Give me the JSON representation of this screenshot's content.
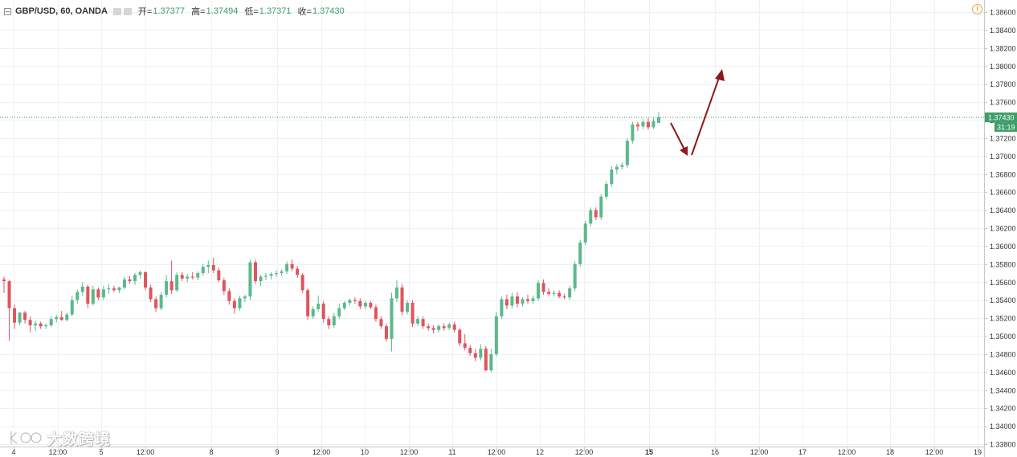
{
  "legend": {
    "symbol": "GBP/USD, 60, OANDA",
    "open_label": "开=",
    "open_value": "1.37377",
    "high_label": "高=",
    "high_value": "1.37494",
    "low_label": "低=",
    "low_value": "1.37371",
    "close_label": "收=",
    "close_value": "1.37430"
  },
  "alert_icon": "!",
  "watermark": {
    "text": "大数跨境"
  },
  "colors": {
    "up": "#5bb98b",
    "down": "#e0545e",
    "grid": "#eef1f4",
    "price_line": "#3c9e68",
    "arrow": "#8b1a1a",
    "axis_text": "#333333"
  },
  "chart_data": {
    "type": "candlestick",
    "title": "GBP/USD, 60, OANDA",
    "x_tick_labels": [
      "4",
      "12:00",
      "5",
      "12:00",
      "8",
      "9",
      "12:00",
      "10",
      "12:00",
      "11",
      "12:00",
      "12",
      "12:00",
      "15",
      "16",
      "12:00",
      "17",
      "12:00",
      "18",
      "12:00",
      "19"
    ],
    "y_ticks": [
      "1.38600",
      "1.38400",
      "1.38200",
      "1.38000",
      "1.37800",
      "1.37600",
      "1.37400",
      "1.37200",
      "1.37000",
      "1.36800",
      "1.36600",
      "1.36400",
      "1.36200",
      "1.36000",
      "1.35800",
      "1.35600",
      "1.35400",
      "1.35200",
      "1.35000",
      "1.34800",
      "1.34600",
      "1.34400",
      "1.34200",
      "1.34000",
      "1.33800"
    ],
    "ylim": [
      1.3379,
      1.3868
    ],
    "last_price": "1.37430",
    "countdown": "31:19",
    "series": [
      {
        "o": 1.3563,
        "h": 1.3566,
        "l": 1.3548,
        "c": 1.3561
      },
      {
        "o": 1.3561,
        "h": 1.3562,
        "l": 1.3495,
        "c": 1.3531
      },
      {
        "o": 1.3531,
        "h": 1.3535,
        "l": 1.3508,
        "c": 1.3515
      },
      {
        "o": 1.3515,
        "h": 1.3527,
        "l": 1.3512,
        "c": 1.3526
      },
      {
        "o": 1.3526,
        "h": 1.3528,
        "l": 1.3514,
        "c": 1.3518
      },
      {
        "o": 1.3518,
        "h": 1.3522,
        "l": 1.3504,
        "c": 1.3512
      },
      {
        "o": 1.3512,
        "h": 1.3517,
        "l": 1.3506,
        "c": 1.3514
      },
      {
        "o": 1.3514,
        "h": 1.3516,
        "l": 1.3508,
        "c": 1.3511
      },
      {
        "o": 1.3511,
        "h": 1.3514,
        "l": 1.3508,
        "c": 1.3512
      },
      {
        "o": 1.3512,
        "h": 1.3522,
        "l": 1.351,
        "c": 1.3519
      },
      {
        "o": 1.3519,
        "h": 1.3524,
        "l": 1.3515,
        "c": 1.3521
      },
      {
        "o": 1.3521,
        "h": 1.3528,
        "l": 1.3517,
        "c": 1.3518
      },
      {
        "o": 1.3518,
        "h": 1.3526,
        "l": 1.3516,
        "c": 1.3524
      },
      {
        "o": 1.3524,
        "h": 1.3545,
        "l": 1.3522,
        "c": 1.354
      },
      {
        "o": 1.354,
        "h": 1.3552,
        "l": 1.3536,
        "c": 1.3549
      },
      {
        "o": 1.3549,
        "h": 1.356,
        "l": 1.3545,
        "c": 1.3555
      },
      {
        "o": 1.3555,
        "h": 1.3557,
        "l": 1.3531,
        "c": 1.3536
      },
      {
        "o": 1.3536,
        "h": 1.3556,
        "l": 1.3534,
        "c": 1.3552
      },
      {
        "o": 1.3552,
        "h": 1.3554,
        "l": 1.354,
        "c": 1.3543
      },
      {
        "o": 1.3543,
        "h": 1.3556,
        "l": 1.354,
        "c": 1.3552
      },
      {
        "o": 1.3552,
        "h": 1.3558,
        "l": 1.3547,
        "c": 1.3553
      },
      {
        "o": 1.3553,
        "h": 1.3556,
        "l": 1.3549,
        "c": 1.3551
      },
      {
        "o": 1.3551,
        "h": 1.3555,
        "l": 1.3548,
        "c": 1.3554
      },
      {
        "o": 1.3554,
        "h": 1.3566,
        "l": 1.3552,
        "c": 1.3563
      },
      {
        "o": 1.3563,
        "h": 1.3567,
        "l": 1.3558,
        "c": 1.3561
      },
      {
        "o": 1.3561,
        "h": 1.357,
        "l": 1.3557,
        "c": 1.3568
      },
      {
        "o": 1.3568,
        "h": 1.3573,
        "l": 1.3564,
        "c": 1.3571
      },
      {
        "o": 1.3571,
        "h": 1.3572,
        "l": 1.3551,
        "c": 1.3554
      },
      {
        "o": 1.3554,
        "h": 1.3557,
        "l": 1.3538,
        "c": 1.3541
      },
      {
        "o": 1.3541,
        "h": 1.3544,
        "l": 1.3527,
        "c": 1.3531
      },
      {
        "o": 1.3531,
        "h": 1.3549,
        "l": 1.3529,
        "c": 1.3546
      },
      {
        "o": 1.3546,
        "h": 1.3568,
        "l": 1.3543,
        "c": 1.3561
      },
      {
        "o": 1.3561,
        "h": 1.3584,
        "l": 1.3547,
        "c": 1.3551
      },
      {
        "o": 1.3551,
        "h": 1.3571,
        "l": 1.3549,
        "c": 1.3568
      },
      {
        "o": 1.3568,
        "h": 1.3571,
        "l": 1.3561,
        "c": 1.3564
      },
      {
        "o": 1.3564,
        "h": 1.3569,
        "l": 1.356,
        "c": 1.3566
      },
      {
        "o": 1.3566,
        "h": 1.3571,
        "l": 1.3563,
        "c": 1.3565
      },
      {
        "o": 1.3565,
        "h": 1.3572,
        "l": 1.3562,
        "c": 1.357
      },
      {
        "o": 1.357,
        "h": 1.358,
        "l": 1.3567,
        "c": 1.3577
      },
      {
        "o": 1.3577,
        "h": 1.3584,
        "l": 1.357,
        "c": 1.3579
      },
      {
        "o": 1.3579,
        "h": 1.3587,
        "l": 1.357,
        "c": 1.3573
      },
      {
        "o": 1.3573,
        "h": 1.3576,
        "l": 1.356,
        "c": 1.3562
      },
      {
        "o": 1.3562,
        "h": 1.3565,
        "l": 1.3546,
        "c": 1.355
      },
      {
        "o": 1.355,
        "h": 1.3553,
        "l": 1.3535,
        "c": 1.3539
      },
      {
        "o": 1.3539,
        "h": 1.3542,
        "l": 1.3525,
        "c": 1.3531
      },
      {
        "o": 1.3531,
        "h": 1.3545,
        "l": 1.3528,
        "c": 1.3542
      },
      {
        "o": 1.3542,
        "h": 1.3546,
        "l": 1.3538,
        "c": 1.3544
      },
      {
        "o": 1.3544,
        "h": 1.3585,
        "l": 1.354,
        "c": 1.3582
      },
      {
        "o": 1.3582,
        "h": 1.3585,
        "l": 1.3558,
        "c": 1.3561
      },
      {
        "o": 1.3561,
        "h": 1.3568,
        "l": 1.3556,
        "c": 1.3566
      },
      {
        "o": 1.3566,
        "h": 1.357,
        "l": 1.3562,
        "c": 1.3567
      },
      {
        "o": 1.3567,
        "h": 1.3571,
        "l": 1.3563,
        "c": 1.3569
      },
      {
        "o": 1.3569,
        "h": 1.3573,
        "l": 1.3566,
        "c": 1.357
      },
      {
        "o": 1.357,
        "h": 1.3574,
        "l": 1.3567,
        "c": 1.3572
      },
      {
        "o": 1.3572,
        "h": 1.3583,
        "l": 1.3569,
        "c": 1.358
      },
      {
        "o": 1.358,
        "h": 1.3585,
        "l": 1.3572,
        "c": 1.3575
      },
      {
        "o": 1.3575,
        "h": 1.3578,
        "l": 1.3565,
        "c": 1.3568
      },
      {
        "o": 1.3568,
        "h": 1.357,
        "l": 1.3548,
        "c": 1.3551
      },
      {
        "o": 1.3551,
        "h": 1.3553,
        "l": 1.3518,
        "c": 1.3522
      },
      {
        "o": 1.3522,
        "h": 1.3533,
        "l": 1.3519,
        "c": 1.353
      },
      {
        "o": 1.353,
        "h": 1.3545,
        "l": 1.3527,
        "c": 1.3536
      },
      {
        "o": 1.3536,
        "h": 1.3539,
        "l": 1.3515,
        "c": 1.3519
      },
      {
        "o": 1.3519,
        "h": 1.3522,
        "l": 1.3508,
        "c": 1.3512
      },
      {
        "o": 1.3512,
        "h": 1.3526,
        "l": 1.3509,
        "c": 1.3522
      },
      {
        "o": 1.3522,
        "h": 1.3536,
        "l": 1.3519,
        "c": 1.3531
      },
      {
        "o": 1.3531,
        "h": 1.3539,
        "l": 1.3529,
        "c": 1.3537
      },
      {
        "o": 1.3537,
        "h": 1.3542,
        "l": 1.3534,
        "c": 1.354
      },
      {
        "o": 1.354,
        "h": 1.3543,
        "l": 1.3536,
        "c": 1.3539
      },
      {
        "o": 1.3539,
        "h": 1.3542,
        "l": 1.353,
        "c": 1.3533
      },
      {
        "o": 1.3533,
        "h": 1.3539,
        "l": 1.353,
        "c": 1.3537
      },
      {
        "o": 1.3537,
        "h": 1.3539,
        "l": 1.353,
        "c": 1.3532
      },
      {
        "o": 1.3532,
        "h": 1.3535,
        "l": 1.3516,
        "c": 1.3519
      },
      {
        "o": 1.3519,
        "h": 1.3522,
        "l": 1.3508,
        "c": 1.3511
      },
      {
        "o": 1.3511,
        "h": 1.3514,
        "l": 1.3494,
        "c": 1.3497
      },
      {
        "o": 1.3497,
        "h": 1.3548,
        "l": 1.3483,
        "c": 1.3542
      },
      {
        "o": 1.3542,
        "h": 1.3562,
        "l": 1.3538,
        "c": 1.3554
      },
      {
        "o": 1.3554,
        "h": 1.3558,
        "l": 1.3523,
        "c": 1.3527
      },
      {
        "o": 1.3527,
        "h": 1.354,
        "l": 1.3524,
        "c": 1.3537
      },
      {
        "o": 1.3537,
        "h": 1.354,
        "l": 1.351,
        "c": 1.3514
      },
      {
        "o": 1.3514,
        "h": 1.3522,
        "l": 1.3511,
        "c": 1.3519
      },
      {
        "o": 1.3519,
        "h": 1.3522,
        "l": 1.3508,
        "c": 1.3511
      },
      {
        "o": 1.3511,
        "h": 1.3514,
        "l": 1.3506,
        "c": 1.3509
      },
      {
        "o": 1.3509,
        "h": 1.3512,
        "l": 1.3503,
        "c": 1.3507
      },
      {
        "o": 1.3507,
        "h": 1.3513,
        "l": 1.3504,
        "c": 1.3511
      },
      {
        "o": 1.3511,
        "h": 1.3514,
        "l": 1.3506,
        "c": 1.3509
      },
      {
        "o": 1.3509,
        "h": 1.3515,
        "l": 1.3507,
        "c": 1.3513
      },
      {
        "o": 1.3513,
        "h": 1.3516,
        "l": 1.3504,
        "c": 1.3507
      },
      {
        "o": 1.3507,
        "h": 1.3509,
        "l": 1.3489,
        "c": 1.3492
      },
      {
        "o": 1.3492,
        "h": 1.3502,
        "l": 1.3484,
        "c": 1.3487
      },
      {
        "o": 1.3487,
        "h": 1.349,
        "l": 1.3478,
        "c": 1.3481
      },
      {
        "o": 1.3481,
        "h": 1.3486,
        "l": 1.3472,
        "c": 1.3476
      },
      {
        "o": 1.3476,
        "h": 1.3491,
        "l": 1.3473,
        "c": 1.3486
      },
      {
        "o": 1.3486,
        "h": 1.3489,
        "l": 1.3461,
        "c": 1.3462
      },
      {
        "o": 1.3462,
        "h": 1.3486,
        "l": 1.346,
        "c": 1.348
      },
      {
        "o": 1.348,
        "h": 1.3527,
        "l": 1.3478,
        "c": 1.3522
      },
      {
        "o": 1.3522,
        "h": 1.3544,
        "l": 1.3519,
        "c": 1.3541
      },
      {
        "o": 1.3541,
        "h": 1.3546,
        "l": 1.353,
        "c": 1.3534
      },
      {
        "o": 1.3534,
        "h": 1.3548,
        "l": 1.3531,
        "c": 1.3544
      },
      {
        "o": 1.3544,
        "h": 1.3549,
        "l": 1.3532,
        "c": 1.3536
      },
      {
        "o": 1.3536,
        "h": 1.3543,
        "l": 1.3533,
        "c": 1.3541
      },
      {
        "o": 1.3541,
        "h": 1.3546,
        "l": 1.3536,
        "c": 1.3539
      },
      {
        "o": 1.3539,
        "h": 1.3545,
        "l": 1.3536,
        "c": 1.3542
      },
      {
        "o": 1.3542,
        "h": 1.3562,
        "l": 1.3539,
        "c": 1.3559
      },
      {
        "o": 1.3559,
        "h": 1.3563,
        "l": 1.3546,
        "c": 1.3549
      },
      {
        "o": 1.3549,
        "h": 1.3553,
        "l": 1.3544,
        "c": 1.3547
      },
      {
        "o": 1.3547,
        "h": 1.3551,
        "l": 1.3544,
        "c": 1.3548
      },
      {
        "o": 1.3548,
        "h": 1.3551,
        "l": 1.3542,
        "c": 1.3544
      },
      {
        "o": 1.3544,
        "h": 1.3547,
        "l": 1.3541,
        "c": 1.3543
      },
      {
        "o": 1.3543,
        "h": 1.3556,
        "l": 1.354,
        "c": 1.3553
      },
      {
        "o": 1.3553,
        "h": 1.3583,
        "l": 1.355,
        "c": 1.358
      },
      {
        "o": 1.358,
        "h": 1.3607,
        "l": 1.3577,
        "c": 1.3604
      },
      {
        "o": 1.3604,
        "h": 1.3628,
        "l": 1.3601,
        "c": 1.3625
      },
      {
        "o": 1.3625,
        "h": 1.3643,
        "l": 1.3622,
        "c": 1.364
      },
      {
        "o": 1.364,
        "h": 1.3643,
        "l": 1.3629,
        "c": 1.3632
      },
      {
        "o": 1.3632,
        "h": 1.3658,
        "l": 1.3629,
        "c": 1.3655
      },
      {
        "o": 1.3655,
        "h": 1.3672,
        "l": 1.3652,
        "c": 1.3669
      },
      {
        "o": 1.3669,
        "h": 1.3689,
        "l": 1.3666,
        "c": 1.3685
      },
      {
        "o": 1.3685,
        "h": 1.3691,
        "l": 1.368,
        "c": 1.3688
      },
      {
        "o": 1.3688,
        "h": 1.3693,
        "l": 1.3685,
        "c": 1.369
      },
      {
        "o": 1.369,
        "h": 1.372,
        "l": 1.3687,
        "c": 1.3717
      },
      {
        "o": 1.3717,
        "h": 1.3738,
        "l": 1.3714,
        "c": 1.3735
      },
      {
        "o": 1.3735,
        "h": 1.3738,
        "l": 1.3728,
        "c": 1.3733
      },
      {
        "o": 1.3733,
        "h": 1.3741,
        "l": 1.373,
        "c": 1.3738
      },
      {
        "o": 1.3738,
        "h": 1.3742,
        "l": 1.3729,
        "c": 1.3732
      },
      {
        "o": 1.3732,
        "h": 1.3742,
        "l": 1.373,
        "c": 1.3739
      },
      {
        "o": 1.3737,
        "h": 1.3749,
        "l": 1.3737,
        "c": 1.3743
      }
    ]
  }
}
